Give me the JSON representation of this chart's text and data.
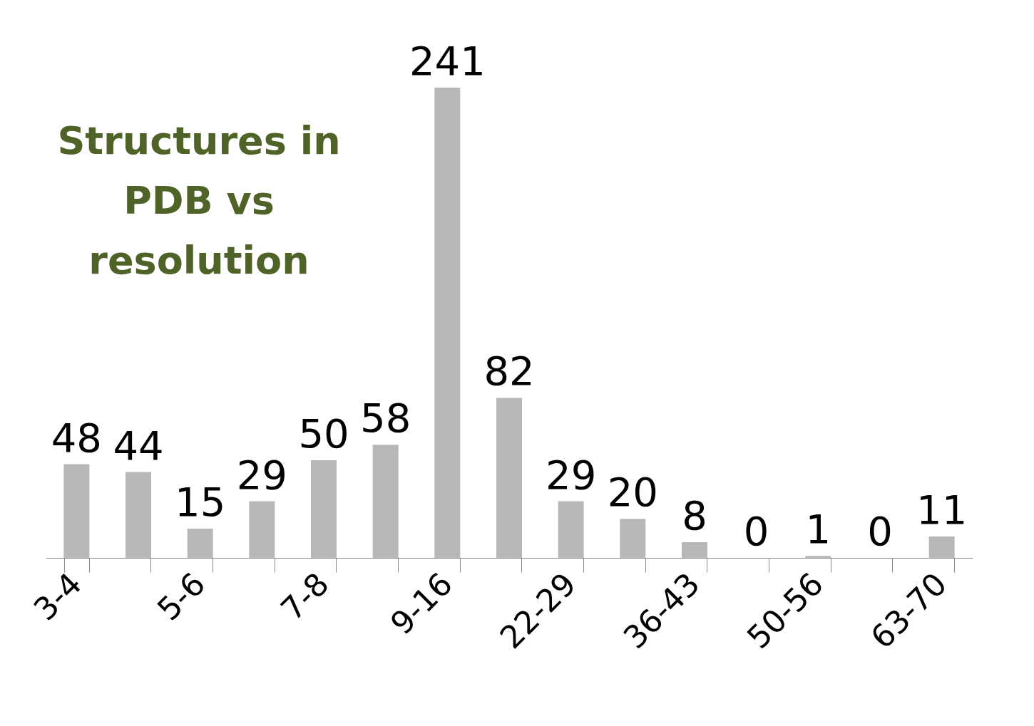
{
  "chart_data": {
    "type": "bar",
    "title": "Structures in PDB vs resolution",
    "categories": [
      "3-4",
      null,
      "5-6",
      null,
      "7-8",
      null,
      "9-16",
      null,
      "22-29",
      null,
      "36-43",
      null,
      "50-56",
      null,
      "63-70"
    ],
    "values": [
      48,
      44,
      15,
      29,
      50,
      58,
      241,
      82,
      29,
      20,
      8,
      0,
      1,
      0,
      11
    ],
    "color": "#b7b7b7",
    "data_labels": true,
    "grid": false
  }
}
